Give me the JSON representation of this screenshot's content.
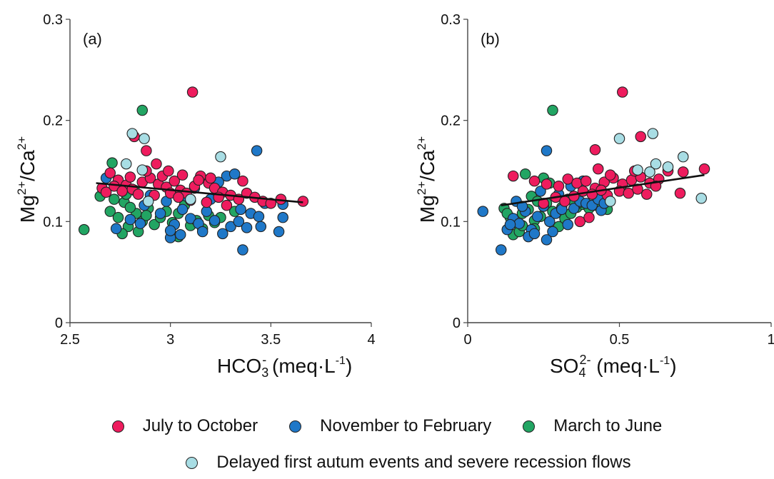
{
  "colors": {
    "july_oct": "#ee1c5e",
    "nov_feb": "#1f78c8",
    "mar_jun": "#22a563",
    "delayed": "#a8dde4",
    "trend": "#111111",
    "outline": "#222222"
  },
  "legend": {
    "items": [
      {
        "label": "July to October",
        "color": "#ee1c5e"
      },
      {
        "label": "November to February",
        "color": "#1f78c8"
      },
      {
        "label": "March to June",
        "color": "#22a563"
      },
      {
        "label": "Delayed first autum events and severe recession flows",
        "color": "#a8dde4"
      }
    ]
  },
  "chart_data": [
    {
      "type": "scatter",
      "panel_label": "(a)",
      "xlim": [
        2.5,
        4
      ],
      "ylim": [
        0,
        0.3
      ],
      "xticks": [
        "2.5",
        "3",
        "3.5",
        "4"
      ],
      "yticks": [
        "0",
        "0.1",
        "0.2",
        "0.3"
      ],
      "xlabel": "HCO3- (meq·L-1)",
      "ylabel": "Mg2+/Ca2+",
      "trendline": {
        "x": [
          2.63,
          3.66
        ],
        "y": [
          0.138,
          0.119
        ]
      },
      "series": [
        {
          "name": "July to October",
          "color": "#ee1c5e",
          "points": [
            [
              3.11,
              0.228
            ],
            [
              2.88,
              0.17
            ],
            [
              2.82,
              0.184
            ],
            [
              2.7,
              0.148
            ],
            [
              2.74,
              0.141
            ],
            [
              2.78,
              0.136
            ],
            [
              2.81,
              0.132
            ],
            [
              2.86,
              0.139
            ],
            [
              2.9,
              0.143
            ],
            [
              2.94,
              0.137
            ],
            [
              2.98,
              0.134
            ],
            [
              3.02,
              0.14
            ],
            [
              3.05,
              0.131
            ],
            [
              3.08,
              0.128
            ],
            [
              3.12,
              0.135
            ],
            [
              3.15,
              0.145
            ],
            [
              3.19,
              0.138
            ],
            [
              3.22,
              0.133
            ],
            [
              3.26,
              0.129
            ],
            [
              3.3,
              0.126
            ],
            [
              3.34,
              0.122
            ],
            [
              3.38,
              0.128
            ],
            [
              3.42,
              0.124
            ],
            [
              3.46,
              0.12
            ],
            [
              3.5,
              0.118
            ],
            [
              3.55,
              0.122
            ],
            [
              3.66,
              0.12
            ],
            [
              2.66,
              0.133
            ],
            [
              2.68,
              0.129
            ],
            [
              2.72,
              0.135
            ],
            [
              2.76,
              0.13
            ],
            [
              2.84,
              0.127
            ],
            [
              2.92,
              0.126
            ],
            [
              2.96,
              0.145
            ],
            [
              3.0,
              0.128
            ],
            [
              3.04,
              0.124
            ],
            [
              3.1,
              0.121
            ],
            [
              3.18,
              0.119
            ],
            [
              3.24,
              0.124
            ],
            [
              3.28,
              0.116
            ],
            [
              2.93,
              0.157
            ],
            [
              2.99,
              0.15
            ],
            [
              3.06,
              0.146
            ],
            [
              3.14,
              0.141
            ],
            [
              3.2,
              0.143
            ],
            [
              2.88,
              0.15
            ],
            [
              2.8,
              0.144
            ],
            [
              3.36,
              0.14
            ]
          ]
        },
        {
          "name": "November to February",
          "color": "#1f78c8",
          "points": [
            [
              3.43,
              0.17
            ],
            [
              3.36,
              0.072
            ],
            [
              3.54,
              0.09
            ],
            [
              3.56,
              0.117
            ],
            [
              3.56,
              0.104
            ],
            [
              2.68,
              0.143
            ],
            [
              2.73,
              0.093
            ],
            [
              2.8,
              0.102
            ],
            [
              2.87,
              0.116
            ],
            [
              2.95,
              0.108
            ],
            [
              3.0,
              0.084
            ],
            [
              3.02,
              0.097
            ],
            [
              3.06,
              0.112
            ],
            [
              3.1,
              0.103
            ],
            [
              3.14,
              0.098
            ],
            [
              3.18,
              0.11
            ],
            [
              3.22,
              0.101
            ],
            [
              3.26,
              0.088
            ],
            [
              3.3,
              0.095
            ],
            [
              3.34,
              0.1
            ],
            [
              3.38,
              0.094
            ],
            [
              3.4,
              0.108
            ],
            [
              3.44,
              0.105
            ],
            [
              3.47,
              0.118
            ],
            [
              3.28,
              0.145
            ],
            [
              3.32,
              0.147
            ],
            [
              3.24,
              0.139
            ],
            [
              3.12,
              0.133
            ],
            [
              3.08,
              0.125
            ],
            [
              2.98,
              0.12
            ],
            [
              2.9,
              0.126
            ],
            [
              3.2,
              0.122
            ],
            [
              3.0,
              0.091
            ],
            [
              3.05,
              0.087
            ],
            [
              3.35,
              0.112
            ],
            [
              3.45,
              0.095
            ],
            [
              2.85,
              0.098
            ],
            [
              3.16,
              0.09
            ]
          ]
        },
        {
          "name": "March to June",
          "color": "#22a563",
          "points": [
            [
              2.86,
              0.21
            ],
            [
              2.57,
              0.092
            ],
            [
              2.71,
              0.158
            ],
            [
              2.65,
              0.125
            ],
            [
              2.7,
              0.11
            ],
            [
              2.74,
              0.104
            ],
            [
              2.77,
              0.119
            ],
            [
              2.79,
              0.095
            ],
            [
              2.83,
              0.108
            ],
            [
              2.86,
              0.1
            ],
            [
              2.89,
              0.113
            ],
            [
              2.92,
              0.097
            ],
            [
              2.95,
              0.104
            ],
            [
              2.98,
              0.11
            ],
            [
              3.01,
              0.099
            ],
            [
              3.04,
              0.108
            ],
            [
              3.07,
              0.116
            ],
            [
              3.1,
              0.096
            ],
            [
              3.13,
              0.101
            ],
            [
              3.16,
              0.093
            ],
            [
              3.19,
              0.106
            ],
            [
              3.22,
              0.099
            ],
            [
              2.76,
              0.088
            ],
            [
              2.8,
              0.114
            ],
            [
              2.84,
              0.09
            ],
            [
              2.88,
              0.106
            ],
            [
              2.72,
              0.122
            ],
            [
              2.78,
              0.127
            ],
            [
              2.82,
              0.131
            ],
            [
              3.04,
              0.085
            ],
            [
              3.32,
              0.11
            ],
            [
              3.25,
              0.104
            ]
          ]
        },
        {
          "name": "Delayed first autum events and severe recession flows",
          "color": "#a8dde4",
          "points": [
            [
              2.81,
              0.187
            ],
            [
              2.87,
              0.182
            ],
            [
              3.25,
              0.164
            ],
            [
              2.78,
              0.157
            ],
            [
              2.86,
              0.151
            ],
            [
              2.89,
              0.12
            ],
            [
              3.1,
              0.122
            ]
          ]
        }
      ]
    },
    {
      "type": "scatter",
      "panel_label": "(b)",
      "xlim": [
        0,
        1
      ],
      "ylim": [
        0,
        0.3
      ],
      "xticks": [
        "0",
        "0.5",
        "1"
      ],
      "yticks": [
        "0",
        "0.1",
        "0.2",
        "0.3"
      ],
      "xlabel": "SO42- (meq·L-1)",
      "ylabel": "Mg2+/Ca2+",
      "trendline": {
        "x": [
          0.11,
          0.78
        ],
        "y": [
          0.116,
          0.146
        ]
      },
      "series": [
        {
          "name": "July to October",
          "color": "#ee1c5e",
          "points": [
            [
              0.51,
              0.228
            ],
            [
              0.57,
              0.184
            ],
            [
              0.42,
              0.171
            ],
            [
              0.78,
              0.152
            ],
            [
              0.71,
              0.149
            ],
            [
              0.7,
              0.128
            ],
            [
              0.15,
              0.145
            ],
            [
              0.22,
              0.14
            ],
            [
              0.26,
              0.137
            ],
            [
              0.3,
              0.135
            ],
            [
              0.33,
              0.142
            ],
            [
              0.36,
              0.138
            ],
            [
              0.39,
              0.14
            ],
            [
              0.42,
              0.133
            ],
            [
              0.45,
              0.139
            ],
            [
              0.48,
              0.143
            ],
            [
              0.51,
              0.137
            ],
            [
              0.54,
              0.141
            ],
            [
              0.57,
              0.144
            ],
            [
              0.6,
              0.138
            ],
            [
              0.63,
              0.142
            ],
            [
              0.66,
              0.15
            ],
            [
              0.46,
              0.126
            ],
            [
              0.5,
              0.13
            ],
            [
              0.53,
              0.128
            ],
            [
              0.56,
              0.132
            ],
            [
              0.59,
              0.127
            ],
            [
              0.62,
              0.135
            ],
            [
              0.35,
              0.125
            ],
            [
              0.38,
              0.13
            ],
            [
              0.41,
              0.127
            ],
            [
              0.44,
              0.131
            ],
            [
              0.29,
              0.124
            ],
            [
              0.32,
              0.12
            ],
            [
              0.25,
              0.118
            ],
            [
              0.37,
              0.1
            ],
            [
              0.4,
              0.104
            ],
            [
              0.43,
              0.152
            ],
            [
              0.47,
              0.146
            ],
            [
              0.55,
              0.15
            ]
          ]
        },
        {
          "name": "November to February",
          "color": "#1f78c8",
          "points": [
            [
              0.05,
              0.11
            ],
            [
              0.11,
              0.072
            ],
            [
              0.26,
              0.17
            ],
            [
              0.44,
              0.111
            ],
            [
              0.13,
              0.092
            ],
            [
              0.15,
              0.103
            ],
            [
              0.17,
              0.098
            ],
            [
              0.19,
              0.11
            ],
            [
              0.21,
              0.092
            ],
            [
              0.23,
              0.105
            ],
            [
              0.25,
              0.115
            ],
            [
              0.27,
              0.1
            ],
            [
              0.29,
              0.108
            ],
            [
              0.31,
              0.112
            ],
            [
              0.33,
              0.097
            ],
            [
              0.35,
              0.113
            ],
            [
              0.37,
              0.12
            ],
            [
              0.39,
              0.118
            ],
            [
              0.41,
              0.116
            ],
            [
              0.43,
              0.122
            ],
            [
              0.45,
              0.118
            ],
            [
              0.2,
              0.085
            ],
            [
              0.22,
              0.088
            ],
            [
              0.28,
              0.09
            ],
            [
              0.16,
              0.12
            ],
            [
              0.24,
              0.13
            ],
            [
              0.3,
              0.127
            ],
            [
              0.34,
              0.135
            ],
            [
              0.38,
              0.14
            ],
            [
              0.18,
              0.115
            ],
            [
              0.14,
              0.097
            ],
            [
              0.26,
              0.082
            ]
          ]
        },
        {
          "name": "March to June",
          "color": "#22a563",
          "points": [
            [
              0.28,
              0.21
            ],
            [
              0.12,
              0.113
            ],
            [
              0.14,
              0.104
            ],
            [
              0.16,
              0.098
            ],
            [
              0.18,
              0.108
            ],
            [
              0.2,
              0.112
            ],
            [
              0.22,
              0.101
            ],
            [
              0.24,
              0.105
            ],
            [
              0.26,
              0.118
            ],
            [
              0.28,
              0.11
            ],
            [
              0.3,
              0.095
            ],
            [
              0.32,
              0.103
            ],
            [
              0.34,
              0.108
            ],
            [
              0.36,
              0.114
            ],
            [
              0.38,
              0.117
            ],
            [
              0.4,
              0.113
            ],
            [
              0.42,
              0.116
            ],
            [
              0.15,
              0.087
            ],
            [
              0.17,
              0.09
            ],
            [
              0.21,
              0.125
            ],
            [
              0.23,
              0.12
            ],
            [
              0.19,
              0.147
            ],
            [
              0.25,
              0.143
            ],
            [
              0.27,
              0.138
            ],
            [
              0.13,
              0.108
            ],
            [
              0.31,
              0.114
            ],
            [
              0.33,
              0.122
            ],
            [
              0.35,
              0.12
            ],
            [
              0.37,
              0.119
            ],
            [
              0.46,
              0.112
            ],
            [
              0.18,
              0.096
            ],
            [
              0.22,
              0.093
            ]
          ]
        },
        {
          "name": "Delayed first autum events and severe recession flows",
          "color": "#a8dde4",
          "points": [
            [
              0.61,
              0.187
            ],
            [
              0.5,
              0.182
            ],
            [
              0.71,
              0.164
            ],
            [
              0.62,
              0.157
            ],
            [
              0.56,
              0.151
            ],
            [
              0.66,
              0.154
            ],
            [
              0.77,
              0.123
            ],
            [
              0.47,
              0.12
            ],
            [
              0.6,
              0.149
            ]
          ]
        }
      ]
    }
  ]
}
